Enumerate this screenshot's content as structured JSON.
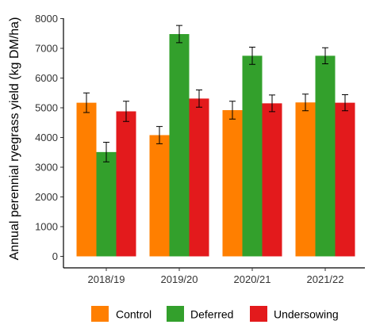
{
  "chart_data": {
    "type": "bar",
    "title": "",
    "xlabel": "",
    "ylabel": "Annual perennial ryegrass yield (kg DM/ha)",
    "ylim": [
      0,
      8000
    ],
    "yticks": [
      0,
      1000,
      2000,
      3000,
      4000,
      5000,
      6000,
      7000,
      8000
    ],
    "categories": [
      "2018/19",
      "2019/20",
      "2020/21",
      "2021/22"
    ],
    "series": [
      {
        "name": "Control",
        "color": "#FF7F00",
        "values": [
          5170,
          4080,
          4920,
          5180
        ],
        "error": [
          330,
          290,
          300,
          280
        ]
      },
      {
        "name": "Deferred",
        "color": "#33A02C",
        "values": [
          3510,
          7480,
          6750,
          6750
        ],
        "error": [
          330,
          290,
          290,
          270
        ]
      },
      {
        "name": "Undersowing",
        "color": "#E31A1C",
        "values": [
          4880,
          5310,
          5150,
          5170
        ],
        "error": [
          340,
          290,
          280,
          270
        ]
      }
    ],
    "grid": false,
    "legend": "bottom"
  }
}
